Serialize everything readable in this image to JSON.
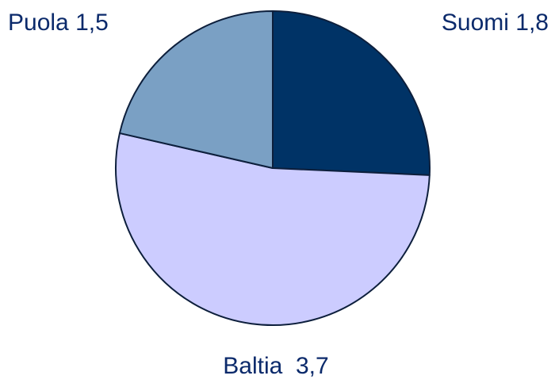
{
  "chart_data": {
    "type": "pie",
    "categories": [
      "Suomi",
      "Baltia",
      "Puola"
    ],
    "values": [
      1.8,
      3.7,
      1.5
    ],
    "value_labels": [
      "1,8",
      "3,7",
      "1,5"
    ],
    "colors": [
      "#003366",
      "#ccccff",
      "#7aa0c4"
    ]
  }
}
